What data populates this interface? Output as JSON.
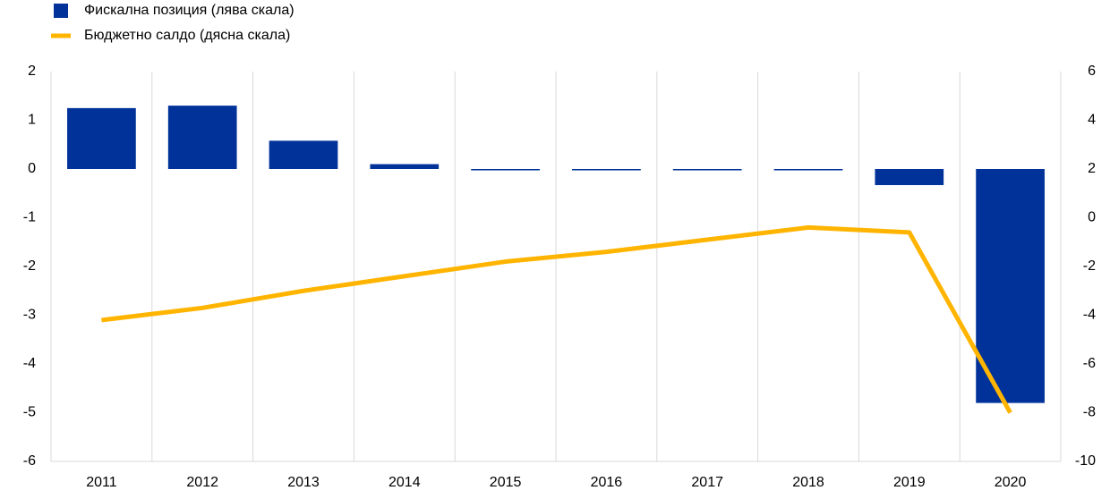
{
  "chart_data": {
    "type": "bar-line",
    "categories": [
      "2011",
      "2012",
      "2013",
      "2014",
      "2015",
      "2016",
      "2017",
      "2018",
      "2019",
      "2020"
    ],
    "series": [
      {
        "name": "Фискална позиция (лява скала)",
        "type": "bar",
        "color": "#003299",
        "values": [
          1.25,
          1.3,
          0.58,
          0.1,
          -0.02,
          -0.02,
          -0.02,
          -0.02,
          -0.33,
          -4.8
        ]
      },
      {
        "name": "Бюджетно салдо (дясна скала)",
        "type": "line",
        "axis": "y2",
        "color": "#ffb400",
        "values": [
          -4.2,
          -3.7,
          -3.0,
          -2.4,
          -1.8,
          -1.4,
          -0.9,
          -0.4,
          -0.6,
          -8.0
        ]
      }
    ],
    "ylim": [
      -6,
      2
    ],
    "yticks": [
      2,
      1,
      0,
      -1,
      -2,
      -3,
      -4,
      -5,
      -6
    ],
    "y2lim": [
      -10,
      6
    ],
    "y2ticks": [
      6,
      4,
      2,
      0,
      -2,
      -4,
      -6,
      -8,
      -10
    ],
    "grid": true,
    "legend": "top-left"
  }
}
